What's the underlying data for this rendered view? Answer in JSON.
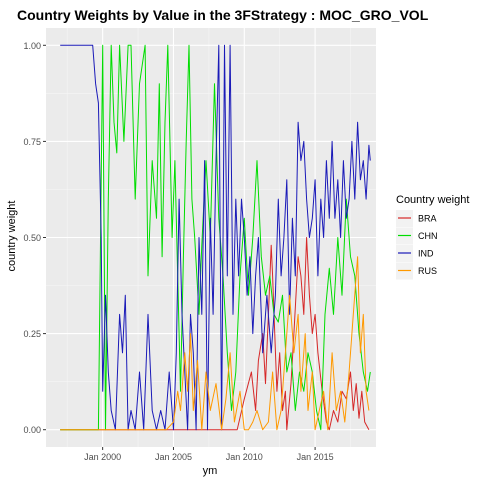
{
  "chart_data": {
    "type": "line",
    "title": "Country Weights by Value in the 3FStrategy : MOC_GRO_VOL",
    "xlabel": "ym",
    "ylabel": "country weight",
    "xlim": [
      1996.0,
      2019.3
    ],
    "ylim": [
      -0.045,
      1.045
    ],
    "x_ticks": [
      {
        "value": 2000.0,
        "label": "Jan 2000"
      },
      {
        "value": 2005.0,
        "label": "Jan 2005"
      },
      {
        "value": 2010.0,
        "label": "Jan 2010"
      },
      {
        "value": 2015.0,
        "label": "Jan 2015"
      }
    ],
    "y_ticks": [
      {
        "value": 0.0,
        "label": "0.00"
      },
      {
        "value": 0.25,
        "label": "0.25"
      },
      {
        "value": 0.5,
        "label": "0.50"
      },
      {
        "value": 0.75,
        "label": "0.75"
      },
      {
        "value": 1.0,
        "label": "1.00"
      }
    ],
    "grid": true,
    "legend": {
      "title": "Country weight",
      "position": "right"
    },
    "series": [
      {
        "name": "BRA",
        "color": "#d62828",
        "points": [
          [
            1997.0,
            0
          ],
          [
            2004.5,
            0
          ],
          [
            2007.0,
            0
          ],
          [
            2008.5,
            0
          ],
          [
            2009.5,
            0
          ],
          [
            2010.0,
            0.08
          ],
          [
            2010.5,
            0.15
          ],
          [
            2010.8,
            0.05
          ],
          [
            2011.0,
            0.18
          ],
          [
            2011.3,
            0.25
          ],
          [
            2011.5,
            0.12
          ],
          [
            2011.7,
            0.3
          ],
          [
            2011.9,
            0.48
          ],
          [
            2012.0,
            0.4
          ],
          [
            2012.3,
            0.1
          ],
          [
            2012.5,
            0.2
          ],
          [
            2012.7,
            0.05
          ],
          [
            2012.9,
            0.1
          ],
          [
            2013.0,
            0
          ],
          [
            2013.3,
            0.12
          ],
          [
            2013.5,
            0.25
          ],
          [
            2013.8,
            0.45
          ],
          [
            2014.0,
            0.4
          ],
          [
            2014.2,
            0.3
          ],
          [
            2014.4,
            0.5
          ],
          [
            2014.6,
            0.35
          ],
          [
            2014.8,
            0.25
          ],
          [
            2015.0,
            0.3
          ],
          [
            2015.2,
            0.2
          ],
          [
            2015.5,
            0.1
          ],
          [
            2015.8,
            0.02
          ],
          [
            2016.0,
            0
          ],
          [
            2016.3,
            0.05
          ],
          [
            2016.6,
            0.02
          ],
          [
            2016.9,
            0.1
          ],
          [
            2017.2,
            0.08
          ],
          [
            2017.5,
            0.15
          ],
          [
            2017.7,
            0.05
          ],
          [
            2017.9,
            0.12
          ],
          [
            2018.1,
            0.03
          ],
          [
            2018.3,
            0.1
          ],
          [
            2018.5,
            0.02
          ],
          [
            2018.8,
            0
          ]
        ]
      },
      {
        "name": "CHN",
        "color": "#00dd00",
        "points": [
          [
            1997.0,
            0
          ],
          [
            1998.5,
            0
          ],
          [
            1999.7,
            0
          ],
          [
            2000.0,
            1.0
          ],
          [
            2000.2,
            0.0
          ],
          [
            2000.4,
            0.6
          ],
          [
            2000.6,
            1.0
          ],
          [
            2000.8,
            0.8
          ],
          [
            2001.0,
            0.72
          ],
          [
            2001.2,
            1.0
          ],
          [
            2001.5,
            0.75
          ],
          [
            2001.8,
            1.0
          ],
          [
            2002.0,
            1.0
          ],
          [
            2002.3,
            0.6
          ],
          [
            2002.6,
            0.9
          ],
          [
            2003.0,
            1.0
          ],
          [
            2003.2,
            0.4
          ],
          [
            2003.5,
            0.7
          ],
          [
            2003.8,
            0.55
          ],
          [
            2004.0,
            0.9
          ],
          [
            2004.2,
            0.45
          ],
          [
            2004.4,
            0.8
          ],
          [
            2004.6,
            1.0
          ],
          [
            2004.9,
            0.5
          ],
          [
            2005.1,
            0.7
          ],
          [
            2005.3,
            0.4
          ],
          [
            2005.5,
            0.1
          ],
          [
            2005.7,
            0.45
          ],
          [
            2005.9,
            0.75
          ],
          [
            2006.1,
            1.0
          ],
          [
            2006.3,
            0.6
          ],
          [
            2006.5,
            0.5
          ],
          [
            2006.8,
            0.3
          ],
          [
            2007.0,
            0.48
          ],
          [
            2007.3,
            0.7
          ],
          [
            2007.6,
            0.5
          ],
          [
            2007.9,
            0.9
          ],
          [
            2008.2,
            0.55
          ],
          [
            2008.5,
            0.4
          ],
          [
            2008.8,
            0.2
          ],
          [
            2009.1,
            0.05
          ],
          [
            2009.4,
            0.15
          ],
          [
            2009.7,
            0.4
          ],
          [
            2010.0,
            0.55
          ],
          [
            2010.3,
            0.35
          ],
          [
            2010.6,
            0.5
          ],
          [
            2010.9,
            0.7
          ],
          [
            2011.2,
            0.45
          ],
          [
            2011.5,
            0.35
          ],
          [
            2011.8,
            0.4
          ],
          [
            2012.1,
            0.3
          ],
          [
            2012.4,
            0.28
          ],
          [
            2012.7,
            0.35
          ],
          [
            2013.0,
            0.15
          ],
          [
            2013.3,
            0.2
          ],
          [
            2013.6,
            0.05
          ],
          [
            2013.9,
            0.15
          ],
          [
            2014.2,
            0.1
          ],
          [
            2014.5,
            0.2
          ],
          [
            2014.8,
            0.15
          ],
          [
            2015.1,
            0.05
          ],
          [
            2015.4,
            0.0
          ],
          [
            2015.7,
            0.3
          ],
          [
            2016.0,
            0.42
          ],
          [
            2016.3,
            0.3
          ],
          [
            2016.6,
            0.5
          ],
          [
            2016.9,
            0.35
          ],
          [
            2017.2,
            0.6
          ],
          [
            2017.5,
            0.45
          ],
          [
            2017.8,
            0.4
          ],
          [
            2018.1,
            0.25
          ],
          [
            2018.4,
            0.15
          ],
          [
            2018.7,
            0.1
          ],
          [
            2018.9,
            0.15
          ]
        ]
      },
      {
        "name": "IND",
        "color": "#1a1ab8",
        "points": [
          [
            1997.0,
            1.0
          ],
          [
            1998.0,
            1.0
          ],
          [
            1999.3,
            1.0
          ],
          [
            1999.5,
            0.9
          ],
          [
            1999.7,
            0.85
          ],
          [
            1999.9,
            0.5
          ],
          [
            2000.0,
            0.1
          ],
          [
            2000.2,
            0.35
          ],
          [
            2000.4,
            0.15
          ],
          [
            2000.6,
            0.05
          ],
          [
            2000.9,
            0.0
          ],
          [
            2001.2,
            0.3
          ],
          [
            2001.4,
            0.2
          ],
          [
            2001.6,
            0.35
          ],
          [
            2001.8,
            0.0
          ],
          [
            2002.0,
            0.05
          ],
          [
            2002.3,
            0.0
          ],
          [
            2002.6,
            0.15
          ],
          [
            2002.9,
            0.0
          ],
          [
            2003.2,
            0.3
          ],
          [
            2003.5,
            0.05
          ],
          [
            2003.8,
            0.0
          ],
          [
            2004.1,
            0.05
          ],
          [
            2004.4,
            0.0
          ],
          [
            2004.7,
            0.15
          ],
          [
            2005.0,
            0.0
          ],
          [
            2005.2,
            0.2
          ],
          [
            2005.4,
            0.6
          ],
          [
            2005.6,
            0.3
          ],
          [
            2005.8,
            0.15
          ],
          [
            2006.0,
            0.0
          ],
          [
            2006.2,
            0.3
          ],
          [
            2006.4,
            0.2
          ],
          [
            2006.6,
            0.0
          ],
          [
            2006.8,
            0.5
          ],
          [
            2007.0,
            0.3
          ],
          [
            2007.2,
            0.7
          ],
          [
            2007.4,
            0.0
          ],
          [
            2007.6,
            0.55
          ],
          [
            2007.8,
            0.3
          ],
          [
            2008.0,
            0.7
          ],
          [
            2008.2,
            1.0
          ],
          [
            2008.4,
            0.0
          ],
          [
            2008.6,
            1.0
          ],
          [
            2008.8,
            0.4
          ],
          [
            2009.0,
            1.0
          ],
          [
            2009.2,
            0.3
          ],
          [
            2009.4,
            0.6
          ],
          [
            2009.6,
            0.4
          ],
          [
            2009.8,
            0.6
          ],
          [
            2010.0,
            0.5
          ],
          [
            2010.2,
            0.35
          ],
          [
            2010.4,
            0.45
          ],
          [
            2010.6,
            0.25
          ],
          [
            2010.8,
            0.4
          ],
          [
            2011.0,
            0.5
          ],
          [
            2011.3,
            0.2
          ],
          [
            2011.6,
            0.35
          ],
          [
            2011.9,
            0.2
          ],
          [
            2012.2,
            0.35
          ],
          [
            2012.4,
            0.6
          ],
          [
            2012.6,
            0.4
          ],
          [
            2012.8,
            0.5
          ],
          [
            2013.0,
            0.65
          ],
          [
            2013.2,
            0.3
          ],
          [
            2013.4,
            0.55
          ],
          [
            2013.6,
            0.4
          ],
          [
            2013.8,
            0.8
          ],
          [
            2014.0,
            0.7
          ],
          [
            2014.2,
            0.75
          ],
          [
            2014.4,
            0.6
          ],
          [
            2014.6,
            0.5
          ],
          [
            2014.8,
            0.55
          ],
          [
            2015.0,
            0.65
          ],
          [
            2015.2,
            0.4
          ],
          [
            2015.4,
            0.6
          ],
          [
            2015.6,
            0.5
          ],
          [
            2015.8,
            0.7
          ],
          [
            2016.0,
            0.55
          ],
          [
            2016.2,
            0.75
          ],
          [
            2016.4,
            0.55
          ],
          [
            2016.6,
            0.65
          ],
          [
            2016.8,
            0.5
          ],
          [
            2017.0,
            0.7
          ],
          [
            2017.2,
            0.55
          ],
          [
            2017.4,
            0.6
          ],
          [
            2017.6,
            0.75
          ],
          [
            2017.8,
            0.6
          ],
          [
            2018.0,
            0.8
          ],
          [
            2018.2,
            0.65
          ],
          [
            2018.4,
            0.7
          ],
          [
            2018.6,
            0.6
          ],
          [
            2018.8,
            0.74
          ],
          [
            2018.9,
            0.7
          ]
        ]
      },
      {
        "name": "RUS",
        "color": "#ff9900",
        "points": [
          [
            1997.0,
            0
          ],
          [
            2004.5,
            0
          ],
          [
            2005.0,
            0.02
          ],
          [
            2005.3,
            0.1
          ],
          [
            2005.5,
            0.05
          ],
          [
            2005.8,
            0.2
          ],
          [
            2006.0,
            0.1
          ],
          [
            2006.2,
            0.25
          ],
          [
            2006.4,
            0.05
          ],
          [
            2006.7,
            0.18
          ],
          [
            2007.0,
            0.0
          ],
          [
            2007.3,
            0.15
          ],
          [
            2007.6,
            0.05
          ],
          [
            2008.0,
            0.12
          ],
          [
            2008.4,
            0.0
          ],
          [
            2008.7,
            0.08
          ],
          [
            2009.0,
            0.2
          ],
          [
            2009.3,
            0.02
          ],
          [
            2009.7,
            0.1
          ],
          [
            2010.0,
            0.0
          ],
          [
            2010.3,
            0.0
          ],
          [
            2010.6,
            0.02
          ],
          [
            2010.9,
            0.05
          ],
          [
            2011.3,
            0.0
          ],
          [
            2011.7,
            0.02
          ],
          [
            2012.0,
            0.15
          ],
          [
            2012.3,
            0.0
          ],
          [
            2012.6,
            0.05
          ],
          [
            2012.9,
            0.2
          ],
          [
            2013.2,
            0.35
          ],
          [
            2013.5,
            0.2
          ],
          [
            2013.8,
            0.3
          ],
          [
            2014.0,
            0.1
          ],
          [
            2014.3,
            0.25
          ],
          [
            2014.5,
            0.05
          ],
          [
            2014.8,
            0.15
          ],
          [
            2015.0,
            0.0
          ],
          [
            2015.3,
            0.05
          ],
          [
            2015.6,
            0.1
          ],
          [
            2015.9,
            0.0
          ],
          [
            2016.2,
            0.2
          ],
          [
            2016.5,
            0.05
          ],
          [
            2016.8,
            0.1
          ],
          [
            2017.1,
            0.02
          ],
          [
            2017.4,
            0.15
          ],
          [
            2017.7,
            0.3
          ],
          [
            2018.0,
            0.45
          ],
          [
            2018.2,
            0.2
          ],
          [
            2018.4,
            0.3
          ],
          [
            2018.6,
            0.1
          ],
          [
            2018.8,
            0.05
          ]
        ]
      }
    ]
  }
}
